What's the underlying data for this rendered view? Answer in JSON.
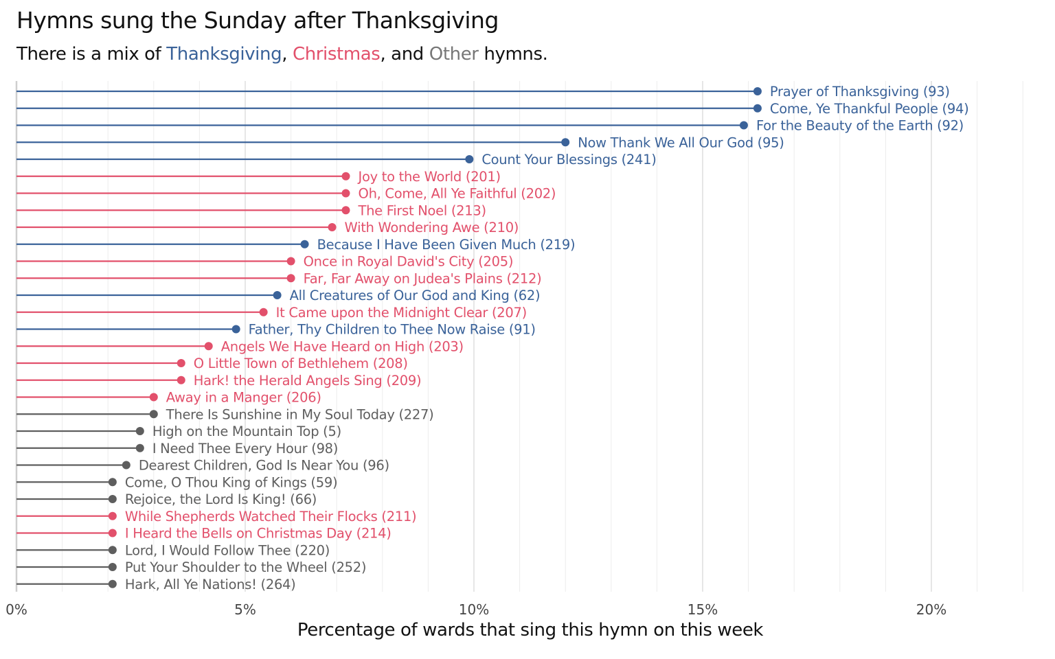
{
  "chart_data": {
    "type": "lollipop",
    "title": "Hymns sung the Sunday after Thanksgiving",
    "subtitle": {
      "prefix": "There is a mix of ",
      "thanksgiving": "Thanksgiving",
      "sep1": ", ",
      "christmas": "Christmas",
      "sep2": ", and ",
      "other": "Other",
      "suffix": " hymns."
    },
    "xlabel": "Percentage of wards that sing this hymn on this week",
    "xlim": [
      0,
      22
    ],
    "xticks": [
      {
        "value": 0,
        "label": "0%"
      },
      {
        "value": 5,
        "label": "5%"
      },
      {
        "value": 10,
        "label": "10%"
      },
      {
        "value": 15,
        "label": "15%"
      },
      {
        "value": 20,
        "label": "20%"
      }
    ],
    "colors": {
      "Thanksgiving": "#3a6299",
      "Christmas": "#e2506b",
      "Other": "#5e5e5e"
    },
    "items": [
      {
        "label": "Prayer of Thanksgiving (93)",
        "value": 16.2,
        "category": "Thanksgiving"
      },
      {
        "label": "Come, Ye Thankful People (94)",
        "value": 16.2,
        "category": "Thanksgiving"
      },
      {
        "label": "For the Beauty of the Earth (92)",
        "value": 15.9,
        "category": "Thanksgiving"
      },
      {
        "label": "Now Thank We All Our God (95)",
        "value": 12.0,
        "category": "Thanksgiving"
      },
      {
        "label": "Count Your Blessings (241)",
        "value": 9.9,
        "category": "Thanksgiving"
      },
      {
        "label": "Joy to the World (201)",
        "value": 7.2,
        "category": "Christmas"
      },
      {
        "label": "Oh, Come, All Ye Faithful (202)",
        "value": 7.2,
        "category": "Christmas"
      },
      {
        "label": "The First Noel (213)",
        "value": 7.2,
        "category": "Christmas"
      },
      {
        "label": "With Wondering Awe (210)",
        "value": 6.9,
        "category": "Christmas"
      },
      {
        "label": "Because I Have Been Given Much (219)",
        "value": 6.3,
        "category": "Thanksgiving"
      },
      {
        "label": "Once in Royal David's City (205)",
        "value": 6.0,
        "category": "Christmas"
      },
      {
        "label": "Far, Far Away on Judea's Plains (212)",
        "value": 6.0,
        "category": "Christmas"
      },
      {
        "label": "All Creatures of Our God and King (62)",
        "value": 5.7,
        "category": "Thanksgiving"
      },
      {
        "label": "It Came upon the Midnight Clear (207)",
        "value": 5.4,
        "category": "Christmas"
      },
      {
        "label": "Father, Thy Children to Thee Now Raise (91)",
        "value": 4.8,
        "category": "Thanksgiving"
      },
      {
        "label": "Angels We Have Heard on High (203)",
        "value": 4.2,
        "category": "Christmas"
      },
      {
        "label": "O Little Town of Bethlehem (208)",
        "value": 3.6,
        "category": "Christmas"
      },
      {
        "label": "Hark! the Herald Angels Sing (209)",
        "value": 3.6,
        "category": "Christmas"
      },
      {
        "label": "Away in a Manger (206)",
        "value": 3.0,
        "category": "Christmas"
      },
      {
        "label": "There Is Sunshine in My Soul Today (227)",
        "value": 3.0,
        "category": "Other"
      },
      {
        "label": "High on the Mountain Top (5)",
        "value": 2.7,
        "category": "Other"
      },
      {
        "label": "I Need Thee Every Hour (98)",
        "value": 2.7,
        "category": "Other"
      },
      {
        "label": "Dearest Children, God Is Near You (96)",
        "value": 2.4,
        "category": "Other"
      },
      {
        "label": "Come, O Thou King of Kings (59)",
        "value": 2.1,
        "category": "Other"
      },
      {
        "label": "Rejoice, the Lord Is King! (66)",
        "value": 2.1,
        "category": "Other"
      },
      {
        "label": "While Shepherds Watched Their Flocks (211)",
        "value": 2.1,
        "category": "Christmas"
      },
      {
        "label": "I Heard the Bells on Christmas Day (214)",
        "value": 2.1,
        "category": "Christmas"
      },
      {
        "label": "Lord, I Would Follow Thee (220)",
        "value": 2.1,
        "category": "Other"
      },
      {
        "label": "Put Your Shoulder to the Wheel (252)",
        "value": 2.1,
        "category": "Other"
      },
      {
        "label": "Hark, All Ye Nations! (264)",
        "value": 2.1,
        "category": "Other"
      }
    ]
  }
}
